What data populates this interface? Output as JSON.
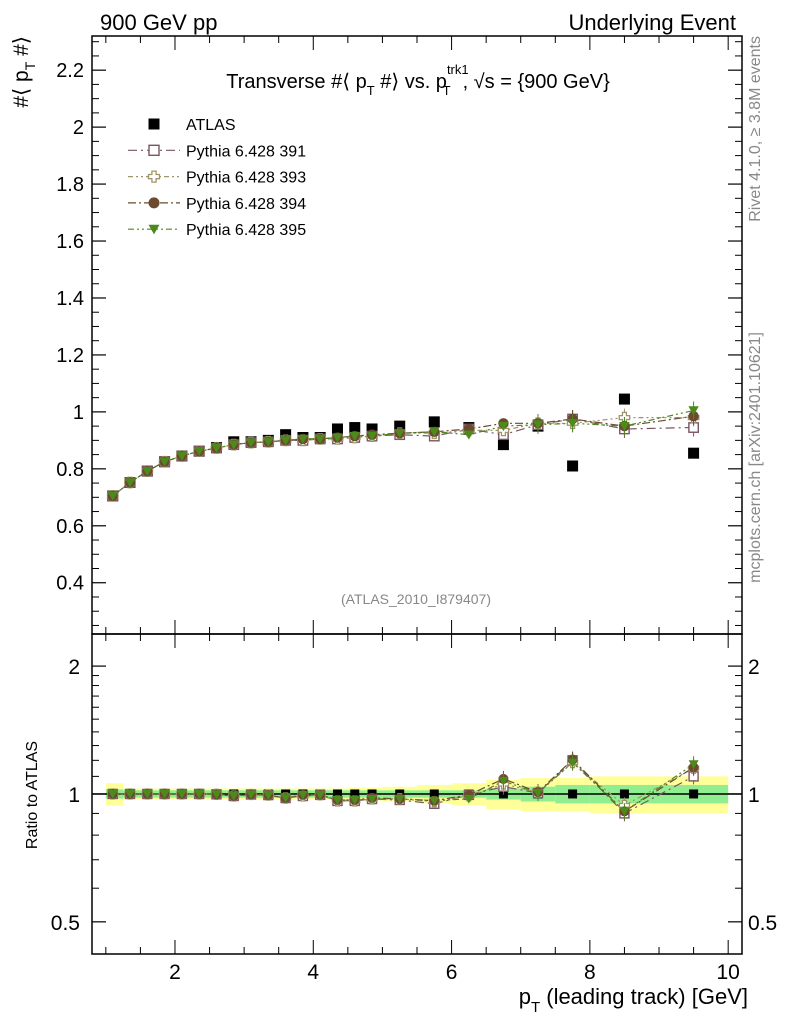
{
  "header": {
    "left": "900 GeV pp",
    "right": "Underlying Event"
  },
  "side_labels": {
    "rivet": "Rivet 4.1.0, ≥ 3.8M events",
    "mcplots": "mcplots.cern.ch [arXiv:2401.10621]"
  },
  "colors": {
    "atlas": "#000000",
    "p391": "#7a5563",
    "p393": "#a0956a",
    "p394": "#6b4a2f",
    "p395": "#4d8a1c",
    "band_inner": "#90ee90",
    "band_outer": "#ffff99"
  },
  "chart_data": [
    {
      "type": "scatter",
      "title": "Transverse #⟨ p_T #⟩ vs. p_T^trk1, √s = {900 GeV}",
      "title_parts": {
        "a": "Transverse #⟨ p",
        "a_sub": "T",
        "b": " #⟩ vs. p",
        "b_sup": "trk1",
        "b_sub": "T",
        "c": ", √s = {900 GeV}"
      },
      "ylabel": "#⟨ p_T #⟩",
      "ylabel_parts": {
        "a": "#⟨ p",
        "sub": "T",
        "b": " #⟩"
      },
      "xlim": [
        0.8,
        10.2
      ],
      "ylim": [
        0.22,
        2.32
      ],
      "yticks": [
        0.4,
        0.6,
        0.8,
        1,
        1.2,
        1.4,
        1.6,
        1.8,
        2,
        2.2
      ],
      "ytick_labels": [
        "0.4",
        "0.6",
        "0.8",
        "1",
        "1.2",
        "1.4",
        "1.6",
        "1.8",
        "2",
        "2.2"
      ],
      "watermark": "(ATLAS_2010_I879407)",
      "x": [
        1.1,
        1.35,
        1.6,
        1.85,
        2.1,
        2.35,
        2.6,
        2.85,
        3.1,
        3.35,
        3.6,
        3.85,
        4.1,
        4.35,
        4.6,
        4.85,
        5.25,
        5.75,
        6.25,
        6.75,
        7.25,
        7.75,
        8.5,
        9.5
      ],
      "series": [
        {
          "name": "ATLAS",
          "marker": "square-filled",
          "values": [
            0.705,
            0.752,
            0.792,
            0.825,
            0.845,
            0.862,
            0.875,
            0.895,
            0.895,
            0.9,
            0.92,
            0.91,
            0.91,
            0.94,
            0.945,
            0.94,
            0.95,
            0.965,
            0.945,
            0.885,
            0.95,
            0.81,
            1.045,
            0.855
          ]
        },
        {
          "name": "Pythia 6.428 391",
          "marker": "square-open",
          "values": [
            0.705,
            0.752,
            0.792,
            0.825,
            0.845,
            0.862,
            0.873,
            0.885,
            0.892,
            0.895,
            0.9,
            0.9,
            0.905,
            0.905,
            0.91,
            0.915,
            0.92,
            0.915,
            0.94,
            0.92,
            0.955,
            0.975,
            0.94,
            0.945
          ]
        },
        {
          "name": "Pythia 6.428 393",
          "marker": "cross-open",
          "values": [
            0.705,
            0.752,
            0.792,
            0.825,
            0.845,
            0.862,
            0.873,
            0.885,
            0.892,
            0.895,
            0.9,
            0.9,
            0.905,
            0.905,
            0.91,
            0.915,
            0.925,
            0.925,
            0.935,
            0.935,
            0.96,
            0.96,
            0.98,
            0.98
          ]
        },
        {
          "name": "Pythia 6.428 394",
          "marker": "circle-filled",
          "values": [
            0.705,
            0.752,
            0.792,
            0.825,
            0.845,
            0.862,
            0.873,
            0.885,
            0.892,
            0.895,
            0.9,
            0.905,
            0.905,
            0.91,
            0.915,
            0.92,
            0.925,
            0.93,
            0.94,
            0.96,
            0.96,
            0.975,
            0.95,
            0.985
          ]
        },
        {
          "name": "Pythia 6.428 395",
          "marker": "triangle-down-filled",
          "values": [
            0.705,
            0.752,
            0.792,
            0.825,
            0.845,
            0.862,
            0.873,
            0.885,
            0.892,
            0.895,
            0.9,
            0.905,
            0.905,
            0.91,
            0.915,
            0.915,
            0.925,
            0.93,
            0.92,
            0.95,
            0.955,
            0.96,
            0.95,
            1.005
          ]
        }
      ]
    },
    {
      "type": "line",
      "ylabel": "Ratio to ATLAS",
      "xlabel": "p_T (leading track) [GeV]",
      "xlabel_parts": {
        "a": "p",
        "sub": "T",
        "b": " (leading track) [GeV]"
      },
      "xlim": [
        0.8,
        10.2
      ],
      "ylim": [
        0.42,
        2.38
      ],
      "y_scale": "log",
      "yticks": [
        0.5,
        1,
        2
      ],
      "ytick_labels": [
        "0.5",
        "1",
        "2"
      ],
      "xticks": [
        2,
        4,
        6,
        8,
        10
      ],
      "xtick_labels": [
        "2",
        "4",
        "6",
        "8",
        "10"
      ],
      "reference_line": 1,
      "x": [
        1.1,
        1.35,
        1.6,
        1.85,
        2.1,
        2.35,
        2.6,
        2.85,
        3.1,
        3.35,
        3.6,
        3.85,
        4.1,
        4.35,
        4.6,
        4.85,
        5.25,
        5.75,
        6.25,
        6.75,
        7.25,
        7.75,
        8.5,
        9.5
      ],
      "bins_edges": [
        1.0,
        1.25,
        1.5,
        1.75,
        2.0,
        2.25,
        2.5,
        2.75,
        3.0,
        3.25,
        3.5,
        3.75,
        4.0,
        4.25,
        4.5,
        4.75,
        5.0,
        5.5,
        6.0,
        6.5,
        7.0,
        7.5,
        8.0,
        9.0,
        10.0
      ],
      "band_inner_halfwidth": [
        0.025,
        0.02,
        0.02,
        0.02,
        0.02,
        0.02,
        0.02,
        0.02,
        0.02,
        0.02,
        0.02,
        0.02,
        0.02,
        0.02,
        0.02,
        0.02,
        0.02,
        0.02,
        0.02,
        0.03,
        0.04,
        0.05,
        0.05,
        0.05
      ],
      "band_outer_halfwidth": [
        0.06,
        0.03,
        0.03,
        0.03,
        0.03,
        0.03,
        0.03,
        0.03,
        0.03,
        0.03,
        0.03,
        0.03,
        0.03,
        0.03,
        0.035,
        0.035,
        0.04,
        0.05,
        0.06,
        0.08,
        0.09,
        0.09,
        0.1,
        0.1
      ],
      "series": [
        {
          "name": "Pythia 6.428 391",
          "values": [
            1.0,
            1.0,
            1.0,
            1.0,
            1.0,
            1.0,
            0.998,
            0.989,
            0.997,
            0.994,
            0.978,
            0.989,
            0.995,
            0.963,
            0.963,
            0.973,
            0.968,
            0.948,
            0.995,
            1.04,
            1.005,
            1.2,
            0.9,
            1.1
          ]
        },
        {
          "name": "Pythia 6.428 393",
          "values": [
            1.0,
            1.0,
            1.0,
            1.0,
            1.0,
            1.0,
            0.998,
            0.989,
            0.997,
            0.994,
            0.978,
            0.989,
            0.995,
            0.963,
            0.963,
            0.973,
            0.974,
            0.959,
            0.99,
            1.055,
            1.01,
            1.185,
            0.94,
            1.15
          ]
        },
        {
          "name": "Pythia 6.428 394",
          "values": [
            1.0,
            1.0,
            1.0,
            1.0,
            1.0,
            1.0,
            0.998,
            0.989,
            0.997,
            0.994,
            0.978,
            0.995,
            0.995,
            0.968,
            0.968,
            0.979,
            0.974,
            0.964,
            0.995,
            1.085,
            1.01,
            1.205,
            0.91,
            1.155
          ]
        },
        {
          "name": "Pythia 6.428 395",
          "values": [
            1.0,
            1.0,
            1.0,
            1.0,
            1.0,
            1.0,
            0.998,
            0.989,
            0.997,
            0.994,
            0.978,
            0.995,
            0.995,
            0.968,
            0.968,
            0.973,
            0.974,
            0.964,
            0.974,
            1.073,
            1.005,
            1.185,
            0.91,
            1.175
          ]
        }
      ]
    }
  ]
}
